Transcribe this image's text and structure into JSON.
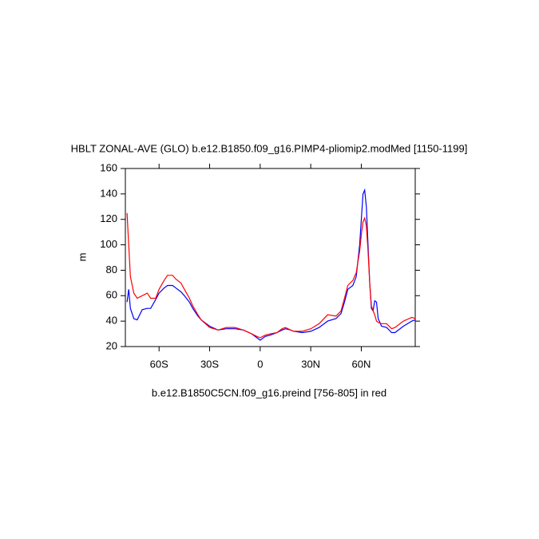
{
  "chart_data": {
    "type": "line",
    "title": "HBLT ZONAL-AVE (GLO) b.e12.B1850.f09_g16.PIMP4-pliomip2.modMed [1150-1199]",
    "subtitle": "b.e12.B1850C5CN.f09_g16.preind [756-805] in red",
    "y_label": "m",
    "x": [
      -79,
      -78,
      -77,
      -75,
      -73,
      -70,
      -67,
      -65,
      -62,
      -60,
      -57,
      -55,
      -52,
      -50,
      -47,
      -45,
      -42,
      -40,
      -37,
      -35,
      -30,
      -25,
      -20,
      -15,
      -10,
      -5,
      -2,
      0,
      3,
      6,
      10,
      13,
      15,
      18,
      20,
      25,
      30,
      35,
      40,
      45,
      48,
      50,
      52,
      55,
      57,
      59,
      60,
      61,
      62,
      63,
      64,
      65,
      66,
      67,
      68,
      69,
      70,
      72,
      75,
      78,
      80,
      85,
      90,
      92
    ],
    "series": [
      {
        "color": "#0000ff",
        "values": [
          55,
          65,
          50,
          42,
          41,
          49,
          50,
          50,
          57,
          62,
          66,
          68,
          68,
          66,
          63,
          60,
          55,
          50,
          44,
          41,
          36,
          33,
          34,
          34,
          33,
          30,
          27,
          25,
          28,
          29,
          31,
          33,
          34,
          33,
          32,
          31,
          32,
          35,
          40,
          42,
          46,
          55,
          65,
          68,
          75,
          100,
          120,
          140,
          143,
          130,
          100,
          70,
          50,
          48,
          56,
          55,
          42,
          36,
          35,
          31,
          31,
          36,
          40,
          41
        ]
      },
      {
        "color": "#ff0000",
        "values": [
          125,
          100,
          75,
          62,
          58,
          60,
          62,
          58,
          58,
          65,
          72,
          76,
          76,
          73,
          70,
          65,
          58,
          52,
          45,
          41,
          35,
          33,
          35,
          35,
          33,
          30,
          28,
          27,
          29,
          30,
          31,
          34,
          35,
          33,
          32,
          32,
          34,
          38,
          45,
          44,
          48,
          58,
          68,
          72,
          78,
          95,
          108,
          118,
          121,
          115,
          95,
          70,
          52,
          48,
          45,
          40,
          39,
          38,
          38,
          34,
          35,
          40,
          43,
          42
        ]
      }
    ],
    "xlim": [
      -80,
      92
    ],
    "xticks": [
      {
        "value": -60,
        "label": "60S"
      },
      {
        "value": -30,
        "label": "30S"
      },
      0,
      {
        "value": 30,
        "label": "30N"
      },
      {
        "value": 60,
        "label": "60N"
      }
    ],
    "ylim": [
      20,
      160
    ],
    "yticks": [
      20,
      40,
      60,
      80,
      100,
      120,
      140,
      160
    ]
  }
}
